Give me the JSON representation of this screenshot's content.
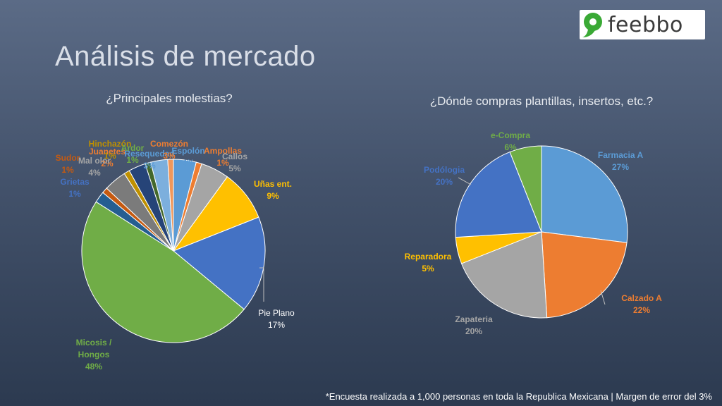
{
  "title": "Análisis de mercado",
  "logo": {
    "text": "feebbo",
    "brand_color": "#3aa935"
  },
  "footnote": "*Encuesta realizada a 1,000 personas en toda la Republica Mexicana | Margen de error del 3%",
  "chart_data": [
    {
      "type": "pie",
      "title": "¿Principales molestias?",
      "slices": [
        {
          "label": "Espolón",
          "value": 4,
          "pct": "4%",
          "color": "#5b9bd5"
        },
        {
          "label": "Ampollas",
          "value": 1,
          "pct": "1%",
          "color": "#ed7d31"
        },
        {
          "label": "Callos",
          "value": 5,
          "pct": "5%",
          "color": "#a5a5a5"
        },
        {
          "label": "Uñas ent.",
          "value": 9,
          "pct": "9%",
          "color": "#ffc000"
        },
        {
          "label": "Pie Plano",
          "value": 17,
          "pct": "17%",
          "color": "#4472c4"
        },
        {
          "label": "Micosis / Hongos",
          "value": 48,
          "pct": "48%",
          "color": "#70ad47"
        },
        {
          "label": "Juanetes",
          "value": 2,
          "pct": "2%",
          "color": "#255e91"
        },
        {
          "label": "Sudor",
          "value": 1,
          "pct": "1%",
          "color": "#c55a11"
        },
        {
          "label": "Mal olor",
          "value": 4,
          "pct": "4%",
          "color": "#7b7b7b"
        },
        {
          "label": "Hinchazón",
          "value": 1,
          "pct": "1%",
          "color": "#bf9000"
        },
        {
          "label": "Resequedad",
          "value": 3,
          "pct": "3%",
          "color": "#264478"
        },
        {
          "label": "Ardor",
          "value": 1,
          "pct": "1%",
          "color": "#43682b"
        },
        {
          "label": "Comezón",
          "value": 3,
          "pct": "3%",
          "color": "#7cafdd"
        },
        {
          "label": "Grietas",
          "value": 1,
          "pct": "1%",
          "color": "#f1975a"
        }
      ]
    },
    {
      "type": "pie",
      "title": "¿Dónde compras plantillas, insertos, etc.?",
      "slices": [
        {
          "label": "Farmacia A",
          "value": 27,
          "pct": "27%",
          "color": "#5b9bd5"
        },
        {
          "label": "Calzado A",
          "value": 22,
          "pct": "22%",
          "color": "#ed7d31"
        },
        {
          "label": "Zapateria",
          "value": 20,
          "pct": "20%",
          "color": "#a5a5a5"
        },
        {
          "label": "Reparadora",
          "value": 5,
          "pct": "5%",
          "color": "#ffc000"
        },
        {
          "label": "Podólogia",
          "value": 20,
          "pct": "20%",
          "color": "#4472c4"
        },
        {
          "label": "e-Compra",
          "value": 6,
          "pct": "6%",
          "color": "#70ad47"
        }
      ]
    }
  ]
}
